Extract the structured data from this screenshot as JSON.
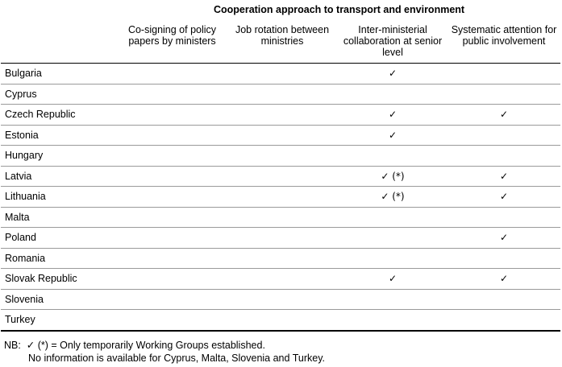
{
  "group_header": "Cooperation approach to transport and environment",
  "columns": [
    "Co-signing of policy papers by ministers",
    "Job rotation between ministries",
    "Inter-ministerial collaboration at senior level",
    "Systematic attention for public involvement"
  ],
  "rows": [
    {
      "country": "Bulgaria",
      "cells": [
        "",
        "",
        "✓",
        ""
      ]
    },
    {
      "country": "Cyprus",
      "cells": [
        "",
        "",
        "",
        ""
      ]
    },
    {
      "country": "Czech Republic",
      "cells": [
        "",
        "",
        "✓",
        "✓"
      ]
    },
    {
      "country": "Estonia",
      "cells": [
        "",
        "",
        "✓",
        ""
      ]
    },
    {
      "country": "Hungary",
      "cells": [
        "",
        "",
        "",
        ""
      ]
    },
    {
      "country": "Latvia",
      "cells": [
        "",
        "",
        "✓ (*)",
        "✓"
      ]
    },
    {
      "country": "Lithuania",
      "cells": [
        "",
        "",
        "✓ (*)",
        "✓"
      ]
    },
    {
      "country": "Malta",
      "cells": [
        "",
        "",
        "",
        ""
      ]
    },
    {
      "country": "Poland",
      "cells": [
        "",
        "",
        "",
        "✓"
      ]
    },
    {
      "country": "Romania",
      "cells": [
        "",
        "",
        "",
        ""
      ]
    },
    {
      "country": "Slovak Republic",
      "cells": [
        "",
        "",
        "✓",
        "✓"
      ]
    },
    {
      "country": "Slovenia",
      "cells": [
        "",
        "",
        "",
        ""
      ]
    },
    {
      "country": "Turkey",
      "cells": [
        "",
        "",
        "",
        ""
      ]
    }
  ],
  "notes": {
    "prefix": "NB:",
    "line1": "✓ (*) = Only temporarily Working Groups established.",
    "line2": "No information is available for Cyprus, Malta, Slovenia and Turkey."
  }
}
